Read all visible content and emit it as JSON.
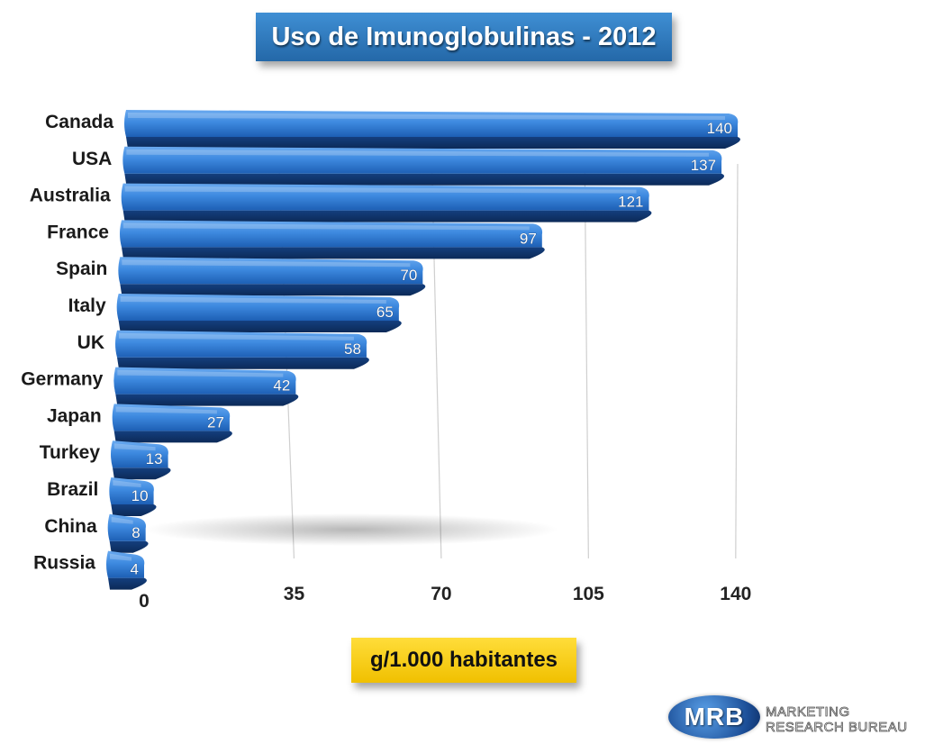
{
  "title": "Uso de Imunoglobulinas - 2012",
  "unit_label": "g/1.000 habitantes",
  "logo": {
    "mark": "MRB",
    "line1": "MARKETING",
    "line2": "RESEARCH BUREAU"
  },
  "colors": {
    "bar_light": "#3e8ae0",
    "bar_dark": "#1a4f9c",
    "title_bg": "#2f7cc2",
    "unit_bg": "#f7cf1a"
  },
  "chart_data": {
    "type": "bar",
    "orientation": "horizontal",
    "title": "Uso de Imunoglobulinas - 2012",
    "xlabel": "g/1.000 habitantes",
    "ylabel": "",
    "categories": [
      "Canada",
      "USA",
      "Australia",
      "France",
      "Spain",
      "Italy",
      "UK",
      "Germany",
      "Japan",
      "Turkey",
      "Brazil",
      "China",
      "Russia"
    ],
    "values": [
      140,
      137,
      121,
      97,
      70,
      65,
      58,
      42,
      27,
      13,
      10,
      8,
      4
    ],
    "xlim": [
      0,
      140
    ],
    "xticks": [
      0,
      35,
      70,
      105,
      140
    ],
    "grid": true,
    "legend": "none"
  }
}
